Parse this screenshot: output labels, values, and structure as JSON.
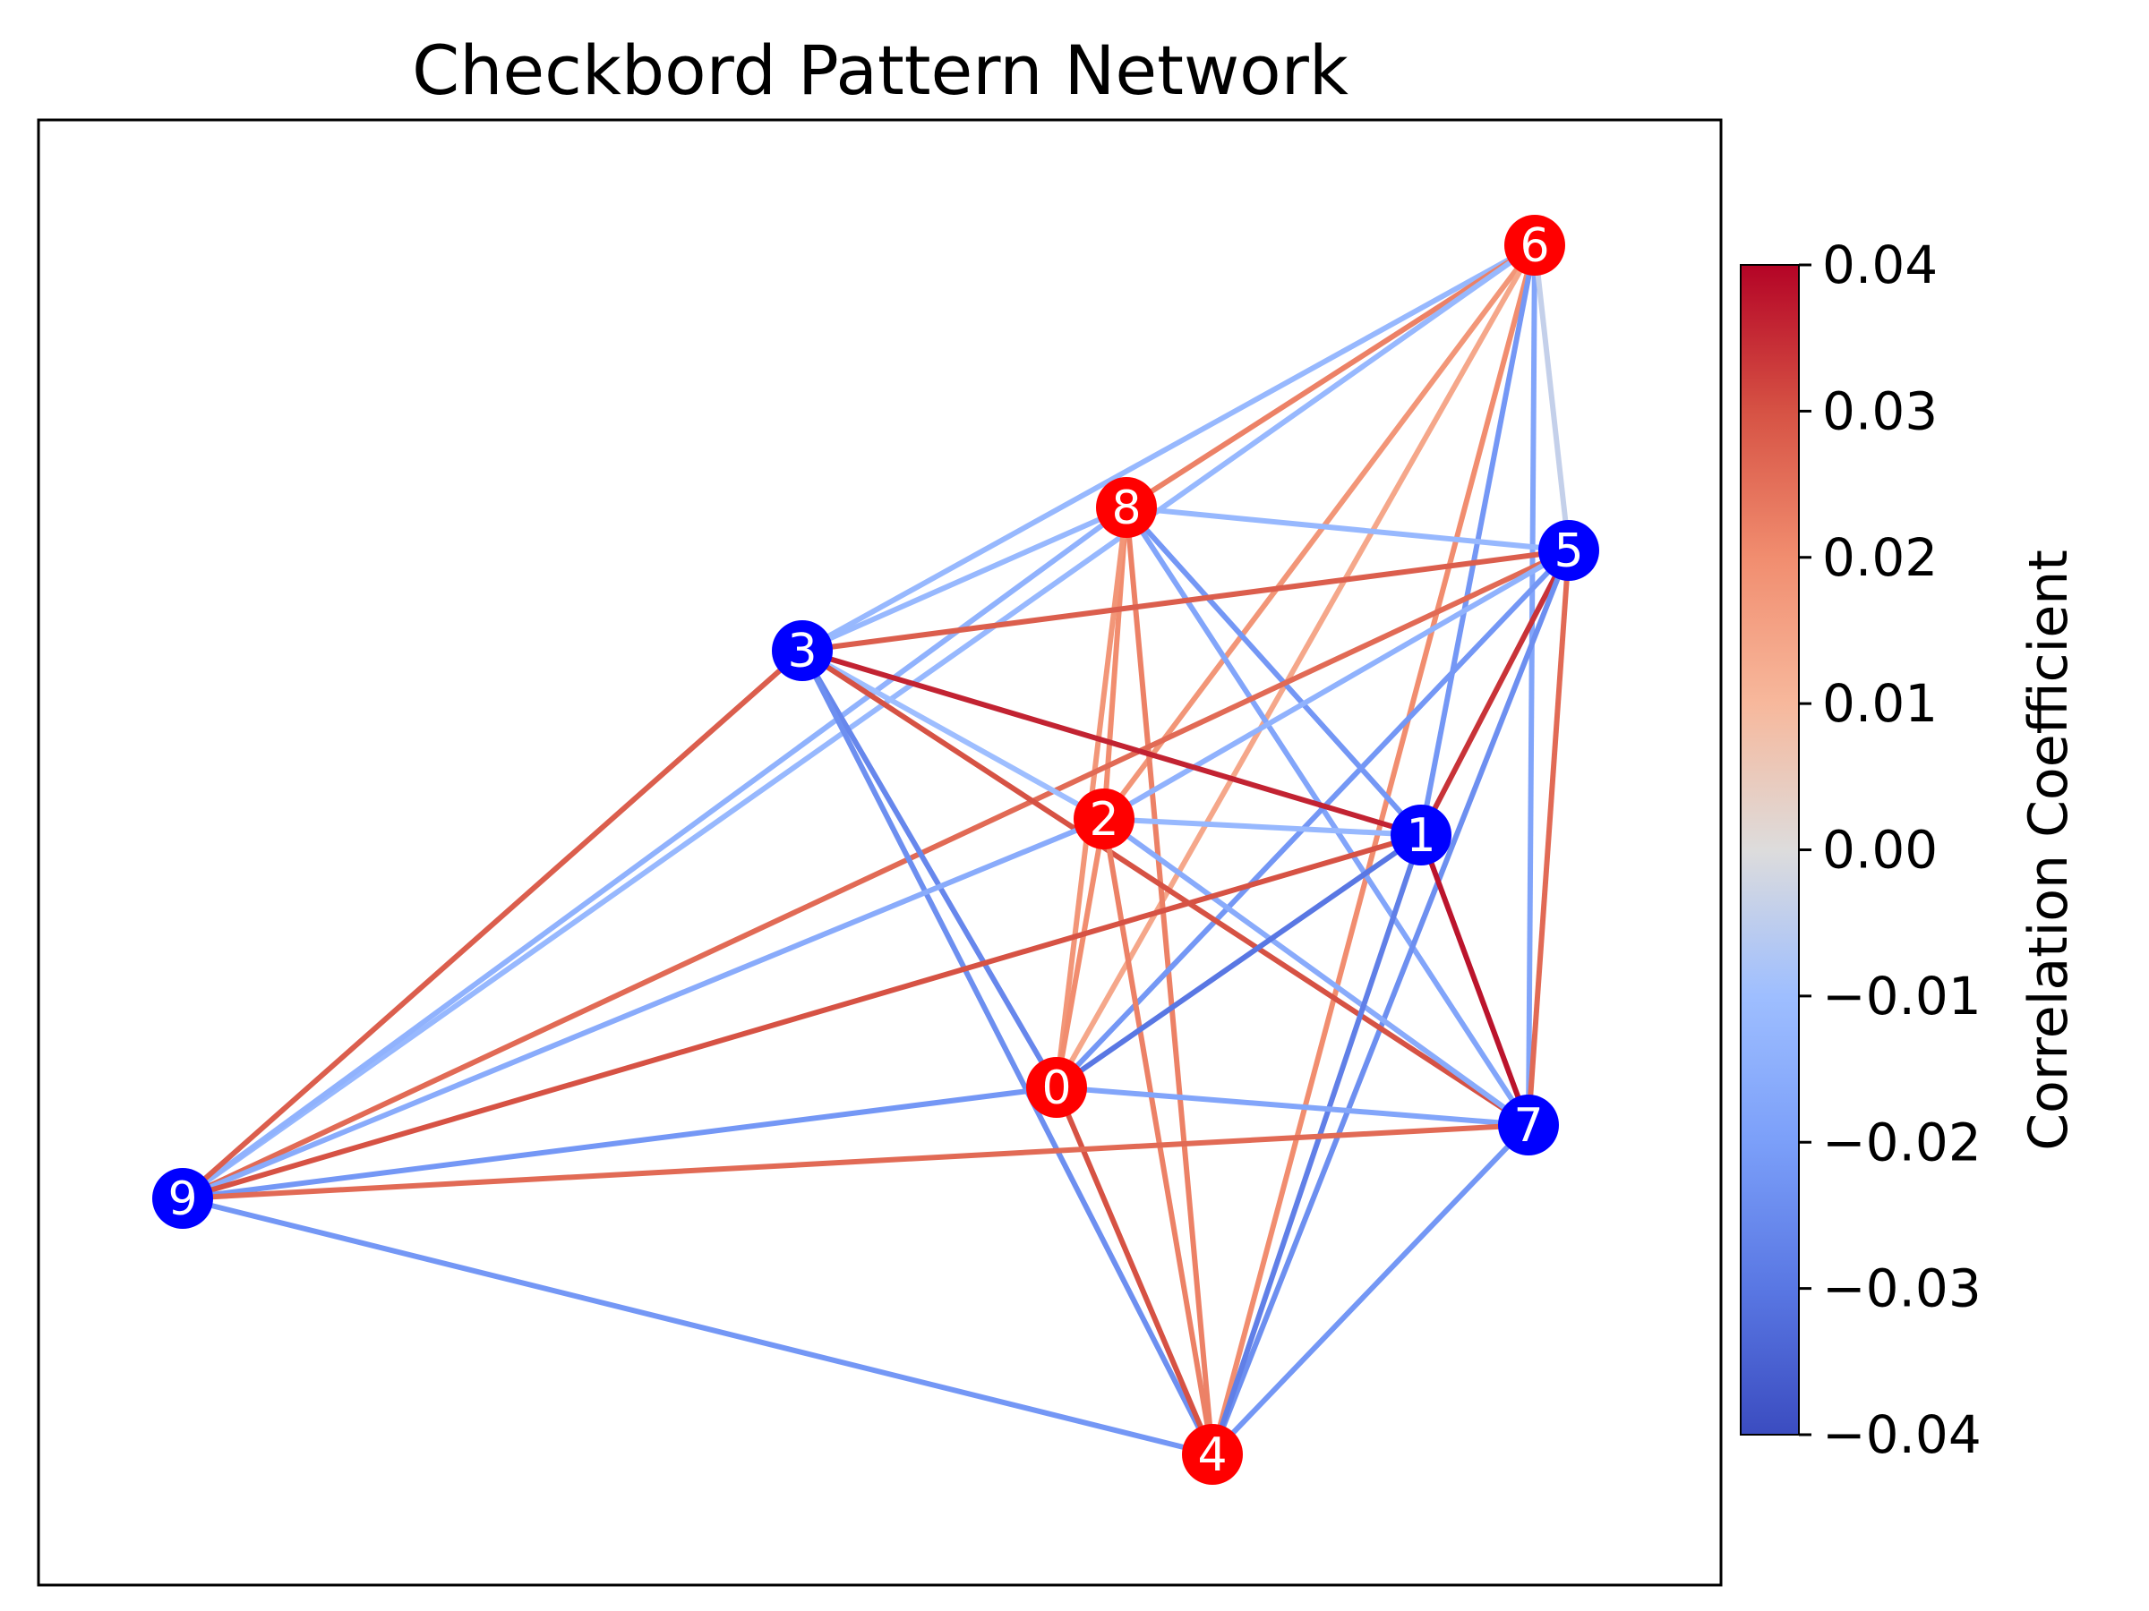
{
  "chart_data": {
    "type": "network",
    "title": "Checkbord Pattern Network",
    "colorbar": {
      "label": "Correlation Coefficient",
      "colormap": "coolwarm",
      "range": [
        -0.04,
        0.04
      ],
      "ticks": [
        0.04,
        0.03,
        0.02,
        0.01,
        0.0,
        -0.01,
        -0.02,
        -0.03,
        -0.04
      ],
      "tick_labels": [
        "0.04",
        "0.03",
        "0.02",
        "0.01",
        "0.00",
        "−0.01",
        "−0.02",
        "−0.03",
        "−0.04"
      ]
    },
    "node_colors": {
      "red": "#ff0000",
      "blue": "#0000ff"
    },
    "nodes": [
      {
        "id": "0",
        "color": "red"
      },
      {
        "id": "1",
        "color": "blue"
      },
      {
        "id": "2",
        "color": "red"
      },
      {
        "id": "3",
        "color": "blue"
      },
      {
        "id": "4",
        "color": "red"
      },
      {
        "id": "5",
        "color": "blue"
      },
      {
        "id": "6",
        "color": "red"
      },
      {
        "id": "7",
        "color": "blue"
      },
      {
        "id": "8",
        "color": "red"
      },
      {
        "id": "9",
        "color": "blue"
      }
    ],
    "edges": [
      {
        "source": "6",
        "target": "3",
        "value": -0.012
      },
      {
        "source": "6",
        "target": "8",
        "value": 0.022
      },
      {
        "source": "6",
        "target": "9",
        "value": -0.012
      },
      {
        "source": "6",
        "target": "2",
        "value": 0.018
      },
      {
        "source": "6",
        "target": "0",
        "value": 0.014
      },
      {
        "source": "6",
        "target": "4",
        "value": 0.02
      },
      {
        "source": "6",
        "target": "1",
        "value": -0.022
      },
      {
        "source": "6",
        "target": "7",
        "value": -0.018
      },
      {
        "source": "6",
        "target": "5",
        "value": -0.004
      },
      {
        "source": "8",
        "target": "5",
        "value": -0.012
      },
      {
        "source": "8",
        "target": "3",
        "value": -0.012
      },
      {
        "source": "8",
        "target": "9",
        "value": -0.014
      },
      {
        "source": "8",
        "target": "2",
        "value": 0.02
      },
      {
        "source": "8",
        "target": "0",
        "value": 0.018
      },
      {
        "source": "8",
        "target": "4",
        "value": 0.022
      },
      {
        "source": "8",
        "target": "1",
        "value": -0.022
      },
      {
        "source": "8",
        "target": "7",
        "value": -0.018
      },
      {
        "source": "5",
        "target": "3",
        "value": 0.028
      },
      {
        "source": "5",
        "target": "9",
        "value": 0.026
      },
      {
        "source": "5",
        "target": "2",
        "value": -0.014
      },
      {
        "source": "5",
        "target": "0",
        "value": -0.022
      },
      {
        "source": "5",
        "target": "1",
        "value": 0.034
      },
      {
        "source": "5",
        "target": "7",
        "value": 0.026
      },
      {
        "source": "5",
        "target": "4",
        "value": -0.024
      },
      {
        "source": "3",
        "target": "1",
        "value": 0.036
      },
      {
        "source": "3",
        "target": "2",
        "value": -0.01
      },
      {
        "source": "3",
        "target": "7",
        "value": 0.03
      },
      {
        "source": "3",
        "target": "0",
        "value": -0.026
      },
      {
        "source": "3",
        "target": "4",
        "value": -0.024
      },
      {
        "source": "3",
        "target": "9",
        "value": 0.028
      },
      {
        "source": "2",
        "target": "1",
        "value": -0.012
      },
      {
        "source": "2",
        "target": "7",
        "value": -0.016
      },
      {
        "source": "2",
        "target": "9",
        "value": -0.016
      },
      {
        "source": "2",
        "target": "0",
        "value": 0.02
      },
      {
        "source": "2",
        "target": "4",
        "value": 0.022
      },
      {
        "source": "1",
        "target": "7",
        "value": 0.038
      },
      {
        "source": "1",
        "target": "9",
        "value": 0.03
      },
      {
        "source": "1",
        "target": "0",
        "value": -0.03
      },
      {
        "source": "1",
        "target": "4",
        "value": -0.028
      },
      {
        "source": "0",
        "target": "7",
        "value": -0.018
      },
      {
        "source": "0",
        "target": "9",
        "value": -0.022
      },
      {
        "source": "0",
        "target": "4",
        "value": 0.03
      },
      {
        "source": "7",
        "target": "9",
        "value": 0.026
      },
      {
        "source": "7",
        "target": "4",
        "value": -0.022
      },
      {
        "source": "9",
        "target": "4",
        "value": -0.022
      }
    ]
  }
}
